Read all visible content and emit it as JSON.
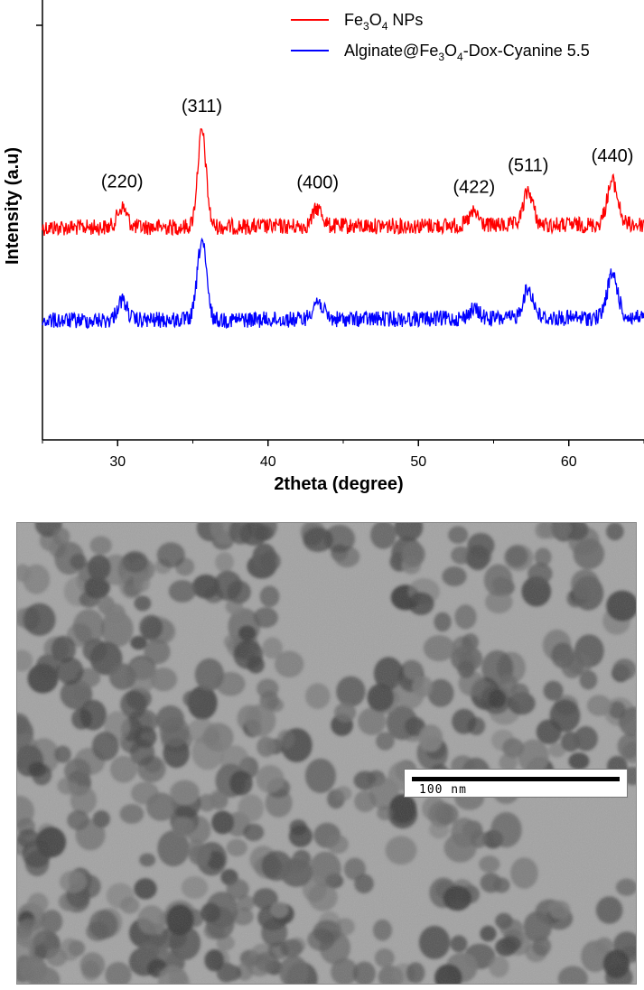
{
  "chart_data": {
    "type": "line",
    "xlabel": "2theta (degree)",
    "ylabel": "Intensity (a.u)",
    "xlim": [
      25,
      65
    ],
    "x_ticks": [
      30,
      40,
      50,
      60
    ],
    "grid": false,
    "legend_placement": "top-right",
    "series": [
      {
        "name_main": "Fe",
        "name_sub1": "3",
        "name_mid": "O",
        "name_sub2": "4",
        "name_tail": " NPs",
        "color": "#ff0000",
        "baseline": 252,
        "slope": 0.045,
        "peaks": [
          {
            "x": 30.3,
            "h": 22,
            "w": 0.45
          },
          {
            "x": 35.6,
            "h": 105,
            "w": 0.4
          },
          {
            "x": 43.3,
            "h": 20,
            "w": 0.45
          },
          {
            "x": 53.7,
            "h": 14,
            "w": 0.45
          },
          {
            "x": 57.3,
            "h": 38,
            "w": 0.45
          },
          {
            "x": 62.9,
            "h": 48,
            "w": 0.5
          }
        ]
      },
      {
        "name_main": "Alginate@Fe",
        "name_sub1": "3",
        "name_mid": "O",
        "name_sub2": "4",
        "name_tail": "-Dox-Cyanine 5.5",
        "color": "#0000ff",
        "baseline": 355,
        "slope": 0.045,
        "peaks": [
          {
            "x": 30.3,
            "h": 22,
            "w": 0.45
          },
          {
            "x": 35.6,
            "h": 88,
            "w": 0.42
          },
          {
            "x": 43.3,
            "h": 20,
            "w": 0.5
          },
          {
            "x": 53.7,
            "h": 10,
            "w": 0.5
          },
          {
            "x": 57.3,
            "h": 32,
            "w": 0.5
          },
          {
            "x": 62.9,
            "h": 48,
            "w": 0.5
          }
        ]
      }
    ],
    "annotations": [
      {
        "text": "(220)",
        "x": 30.3,
        "dy": 0
      },
      {
        "text": "(311)",
        "x": 35.6,
        "dy": 0
      },
      {
        "text": "(400)",
        "x": 43.3,
        "dy": 0
      },
      {
        "text": "(422)",
        "x": 53.7,
        "dy": 0
      },
      {
        "text": "(511)",
        "x": 57.3,
        "dy": 0
      },
      {
        "text": "(440)",
        "x": 62.9,
        "dy": 0
      }
    ]
  },
  "tem_image": {
    "scale_label": "100 nm"
  }
}
